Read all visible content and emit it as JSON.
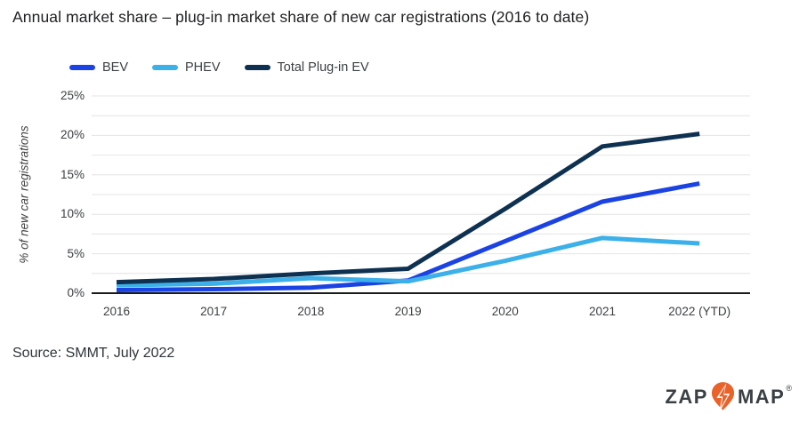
{
  "page": {
    "source": "Source: SMMT, July 2022"
  },
  "logo": {
    "zap": "ZAP",
    "map": "MAP",
    "registered": "®",
    "pin_color": "#e8622a",
    "text_color": "#3b4045"
  },
  "chart_data": {
    "type": "line",
    "title": "Annual market share – plug-in market share of new car registrations (2016 to date)",
    "categories": [
      "2016",
      "2017",
      "2018",
      "2019",
      "2020",
      "2021",
      "2022 (YTD)"
    ],
    "series": [
      {
        "name": "BEV",
        "color": "#1b43e4",
        "values": [
          0.4,
          0.5,
          0.7,
          1.6,
          6.6,
          11.6,
          13.9
        ]
      },
      {
        "name": "PHEV",
        "color": "#3cb0e8",
        "values": [
          1.0,
          1.2,
          1.9,
          1.5,
          4.1,
          7.0,
          6.3
        ]
      },
      {
        "name": "Total Plug-in EV",
        "color": "#0e3151",
        "values": [
          1.4,
          1.8,
          2.5,
          3.1,
          10.7,
          18.6,
          20.2
        ]
      }
    ],
    "xlabel": "",
    "ylabel": "% of new car registrations",
    "ylim": [
      0,
      25
    ],
    "yticks": [
      0,
      5,
      10,
      15,
      20,
      25
    ],
    "ytick_suffix": "%",
    "minor_grid_step": 2.5,
    "grid": true,
    "legend_position": "top-left",
    "grid_color": "#e4e4e4",
    "axis_color": "#1a1a1a"
  }
}
